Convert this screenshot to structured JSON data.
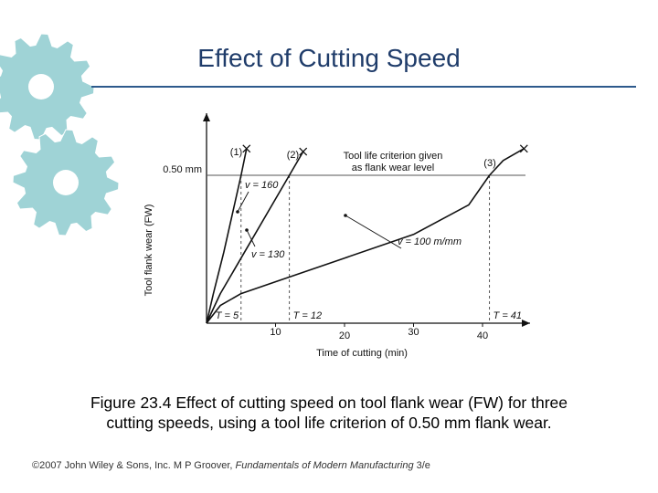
{
  "slide": {
    "title": "Effect of Cutting Speed",
    "caption_line1": "Figure 23.4  Effect of cutting speed on tool flank wear (FW) for three",
    "caption_line2": "cutting speeds, using a tool life criterion of 0.50 mm flank wear.",
    "footer_prefix": "©2007 John Wiley & Sons, Inc.  M P Groover, ",
    "footer_book": "Fundamentals of Modern Manufacturing",
    "footer_suffix": " 3/e"
  },
  "decor": {
    "gear_icon_names": [
      "gear-icon-large",
      "gear-icon-small"
    ],
    "gear_color": "#9fd3d6"
  },
  "chart_data": {
    "type": "line",
    "xlabel": "Time of cutting (min)",
    "ylabel": "Tool flank wear (FW)",
    "xlim": [
      0,
      47
    ],
    "ylim": [
      0,
      0.6
    ],
    "x_ticks": [
      10,
      20,
      30,
      40
    ],
    "criterion": {
      "y": 0.5,
      "label": "0.50 mm",
      "note_line1": "Tool life criterion given",
      "note_line2": "as flank wear level"
    },
    "series": [
      {
        "name": "(1)",
        "speed_label": "v = 160",
        "tool_life": 5,
        "tool_life_label": "T = 5",
        "x": [
          0,
          1,
          2.5,
          5,
          5.8
        ],
        "y": [
          0,
          0.1,
          0.24,
          0.5,
          0.59
        ]
      },
      {
        "name": "(2)",
        "speed_label": "v = 130",
        "tool_life": 12,
        "tool_life_label": "T = 12",
        "x": [
          0,
          2,
          5,
          12,
          14
        ],
        "y": [
          0,
          0.1,
          0.22,
          0.5,
          0.58
        ]
      },
      {
        "name": "(3)",
        "speed_label": "v = 100 m/mm",
        "tool_life": 41,
        "tool_life_label": "T = 41",
        "x": [
          0,
          2,
          5,
          10,
          20,
          30,
          38,
          41,
          43,
          46
        ],
        "y": [
          0,
          0.06,
          0.1,
          0.14,
          0.22,
          0.3,
          0.4,
          0.5,
          0.55,
          0.59
        ]
      }
    ],
    "colors": {
      "line": "#111111",
      "guide": "#555555"
    }
  }
}
